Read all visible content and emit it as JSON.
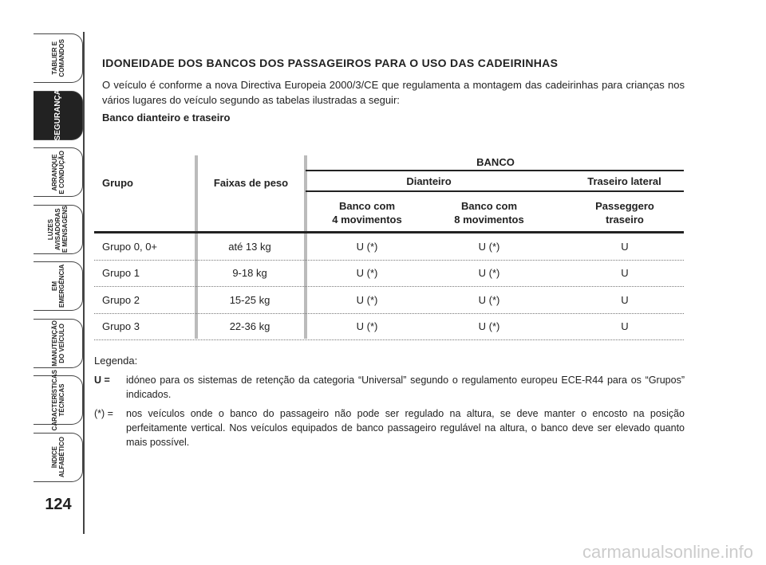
{
  "sidebar": {
    "tabs": [
      {
        "lines": [
          "TABLIER E",
          "COMANDOS"
        ]
      },
      {
        "lines": [
          "SEGURANÇA"
        ],
        "active": true
      },
      {
        "lines": [
          "ARRANQUE",
          "E CONDUÇÃO"
        ]
      },
      {
        "lines": [
          "LUZES",
          "AVISADORAS",
          "E MENSAGENS"
        ]
      },
      {
        "lines": [
          "EM EMERGÊNCIA"
        ]
      },
      {
        "lines": [
          "MANUTENÇÃO",
          "DO VEÍCULO"
        ]
      },
      {
        "lines": [
          "CARACTERÍSTICAS",
          "TÉCNICAS"
        ]
      },
      {
        "lines": [
          "ÍNDICE",
          "ALFABÉTICO"
        ]
      }
    ],
    "page_number": "124"
  },
  "title": "IDONEIDADE DOS BANCOS DOS PASSAGEIROS PARA O USO DAS CADEIRINHAS",
  "intro": "O veículo é conforme a nova Directiva Europeia 2000/3/CE que regulamenta a montagem das cadeirinhas para crianças nos vários lugares do veículo segundo as tabelas ilustradas a seguir:",
  "subheading": "Banco dianteiro e traseiro",
  "table": {
    "header": {
      "group": "Grupo",
      "weight": "Faixas de peso",
      "seat": "BANCO",
      "front": "Dianteiro",
      "rear": "Traseiro lateral",
      "columns": [
        [
          "Banco com",
          "4 movimentos"
        ],
        [
          "Banco com",
          "8 movimentos"
        ],
        [
          "Passeggero",
          "traseiro"
        ]
      ]
    },
    "rows": [
      [
        "Grupo 0, 0+",
        "até 13 kg",
        "U (*)",
        "U (*)",
        "U"
      ],
      [
        "Grupo 1",
        "9-18 kg",
        "U (*)",
        "U (*)",
        "U"
      ],
      [
        "Grupo 2",
        "15-25 kg",
        "U (*)",
        "U (*)",
        "U"
      ],
      [
        "Grupo 3",
        "22-36 kg",
        "U (*)",
        "U (*)",
        "U"
      ]
    ]
  },
  "legend": {
    "title": "Legenda:",
    "items": [
      {
        "key": "U =",
        "text": "idóneo para os sistemas de retenção da categoria “Universal” segundo o regulamento europeu ECE-R44 para os “Grupos” indicados."
      },
      {
        "key": "(*) =",
        "text": "nos veículos onde o banco do passageiro não pode ser regulado na altura, se deve manter o encosto na posição perfeitamente vertical. Nos veículos equipados de banco passageiro regulável na altura, o banco deve ser elevado quanto mais possível."
      }
    ]
  },
  "watermark": "carmanualsonline.info"
}
